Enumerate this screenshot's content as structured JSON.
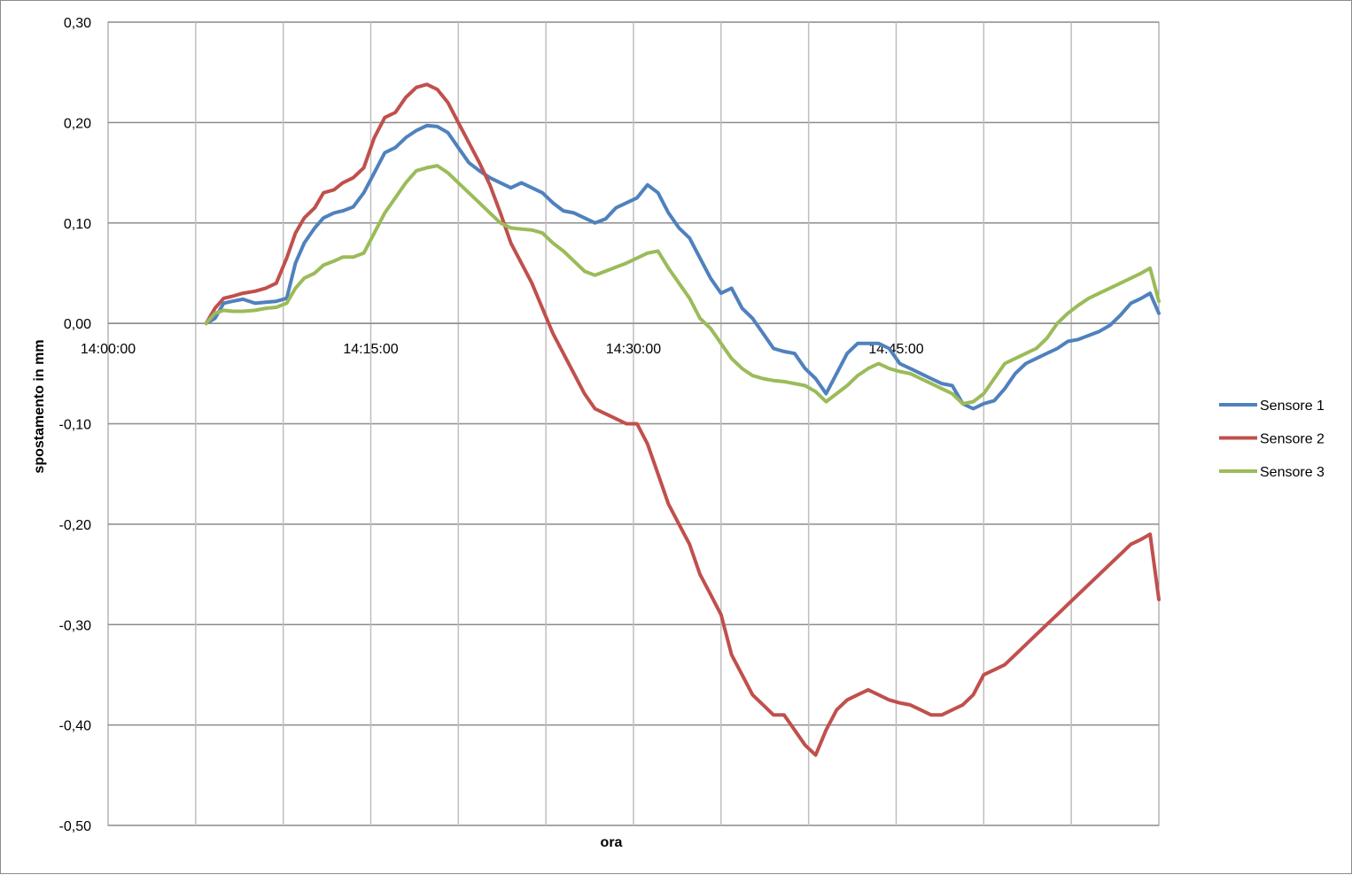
{
  "chart_data": {
    "type": "line",
    "title": "",
    "xlabel": "ora",
    "ylabel": "spostamento in mm",
    "ylim": [
      -0.5,
      0.3
    ],
    "yticks": [
      "0,30",
      "0,20",
      "0,10",
      "0,00",
      "-0,10",
      "-0,20",
      "-0,30",
      "-0,40",
      "-0,50"
    ],
    "ytick_values": [
      0.3,
      0.2,
      0.1,
      0.0,
      -0.1,
      -0.2,
      -0.3,
      -0.4,
      -0.5
    ],
    "x_unit": "minutes after 14:00:00",
    "xlim": [
      0,
      60
    ],
    "xtick_labels": [
      "14:00:00",
      "14:15:00",
      "14:30:00",
      "14:45:00"
    ],
    "xtick_values": [
      0,
      15,
      30,
      45
    ],
    "grid": true,
    "legend_position": "right",
    "series": [
      {
        "name": "Sensore 1",
        "color": "#4f81bd",
        "x": [
          5.6,
          6.1,
          6.6,
          7.1,
          7.7,
          8.4,
          9.0,
          9.6,
          10.2,
          10.7,
          11.2,
          11.8,
          12.3,
          12.9,
          13.4,
          14.0,
          14.6,
          15.2,
          15.8,
          16.4,
          17.0,
          17.6,
          18.2,
          18.8,
          19.4,
          20.0,
          20.6,
          21.2,
          21.8,
          22.4,
          23.0,
          23.6,
          24.2,
          24.8,
          25.4,
          26.0,
          26.6,
          27.2,
          27.8,
          28.4,
          29.0,
          29.6,
          30.2,
          30.8,
          31.4,
          32.0,
          32.6,
          33.2,
          33.8,
          34.4,
          35.0,
          35.6,
          36.2,
          36.8,
          37.4,
          38.0,
          38.6,
          39.2,
          39.8,
          40.4,
          41.0,
          41.6,
          42.2,
          42.8,
          43.4,
          44.0,
          44.6,
          45.2,
          45.8,
          46.4,
          47.0,
          47.6,
          48.2,
          48.8,
          49.4,
          50.0,
          50.6,
          51.2,
          51.8,
          52.4,
          53.0,
          53.6,
          54.2,
          54.8,
          55.4,
          56.0,
          56.6,
          57.2,
          57.8,
          58.4,
          59.0,
          59.5,
          60.0
        ],
        "y": [
          0.0,
          0.005,
          0.02,
          0.022,
          0.024,
          0.02,
          0.021,
          0.022,
          0.025,
          0.06,
          0.08,
          0.095,
          0.105,
          0.11,
          0.112,
          0.116,
          0.13,
          0.15,
          0.17,
          0.175,
          0.185,
          0.192,
          0.197,
          0.196,
          0.19,
          0.175,
          0.16,
          0.152,
          0.145,
          0.14,
          0.135,
          0.14,
          0.135,
          0.13,
          0.12,
          0.112,
          0.11,
          0.105,
          0.1,
          0.104,
          0.115,
          0.12,
          0.125,
          0.138,
          0.13,
          0.11,
          0.095,
          0.085,
          0.065,
          0.045,
          0.03,
          0.035,
          0.015,
          0.005,
          -0.01,
          -0.025,
          -0.028,
          -0.03,
          -0.045,
          -0.055,
          -0.07,
          -0.05,
          -0.03,
          -0.02,
          -0.02,
          -0.02,
          -0.025,
          -0.04,
          -0.045,
          -0.05,
          -0.055,
          -0.06,
          -0.062,
          -0.08,
          -0.085,
          -0.08,
          -0.077,
          -0.065,
          -0.05,
          -0.04,
          -0.035,
          -0.03,
          -0.025,
          -0.018,
          -0.016,
          -0.012,
          -0.008,
          -0.002,
          0.008,
          0.02,
          0.025,
          0.03,
          0.01
        ]
      },
      {
        "name": "Sensore 2",
        "color": "#c0504d",
        "x": [
          5.6,
          6.1,
          6.6,
          7.1,
          7.7,
          8.4,
          9.0,
          9.6,
          10.2,
          10.7,
          11.2,
          11.8,
          12.3,
          12.9,
          13.4,
          14.0,
          14.6,
          15.2,
          15.8,
          16.4,
          17.0,
          17.6,
          18.2,
          18.8,
          19.4,
          20.0,
          20.6,
          21.2,
          21.8,
          22.4,
          23.0,
          23.6,
          24.2,
          24.8,
          25.4,
          26.0,
          26.6,
          27.2,
          27.8,
          28.4,
          29.0,
          29.6,
          30.2,
          30.8,
          31.4,
          32.0,
          32.6,
          33.2,
          33.8,
          34.4,
          35.0,
          35.6,
          36.2,
          36.8,
          37.4,
          38.0,
          38.6,
          39.2,
          39.8,
          40.4,
          41.0,
          41.6,
          42.2,
          42.8,
          43.4,
          44.0,
          44.6,
          45.2,
          45.8,
          46.4,
          47.0,
          47.6,
          48.2,
          48.8,
          49.4,
          50.0,
          50.6,
          51.2,
          51.8,
          52.4,
          53.0,
          53.6,
          54.2,
          54.8,
          55.4,
          56.0,
          56.6,
          57.2,
          57.8,
          58.4,
          59.0,
          59.5,
          60.0
        ],
        "y": [
          0.0,
          0.015,
          0.025,
          0.027,
          0.03,
          0.032,
          0.035,
          0.04,
          0.065,
          0.09,
          0.105,
          0.115,
          0.13,
          0.133,
          0.14,
          0.145,
          0.155,
          0.185,
          0.205,
          0.21,
          0.225,
          0.235,
          0.238,
          0.233,
          0.22,
          0.2,
          0.18,
          0.16,
          0.138,
          0.11,
          0.08,
          0.06,
          0.04,
          0.015,
          -0.01,
          -0.03,
          -0.05,
          -0.07,
          -0.085,
          -0.09,
          -0.095,
          -0.1,
          -0.1,
          -0.12,
          -0.15,
          -0.18,
          -0.2,
          -0.22,
          -0.25,
          -0.27,
          -0.29,
          -0.33,
          -0.35,
          -0.37,
          -0.38,
          -0.39,
          -0.39,
          -0.405,
          -0.42,
          -0.43,
          -0.405,
          -0.385,
          -0.375,
          -0.37,
          -0.365,
          -0.37,
          -0.375,
          -0.378,
          -0.38,
          -0.385,
          -0.39,
          -0.39,
          -0.385,
          -0.38,
          -0.37,
          -0.35,
          -0.345,
          -0.34,
          -0.33,
          -0.32,
          -0.31,
          -0.3,
          -0.29,
          -0.28,
          -0.27,
          -0.26,
          -0.25,
          -0.24,
          -0.23,
          -0.22,
          -0.215,
          -0.21,
          -0.275
        ]
      },
      {
        "name": "Sensore 3",
        "color": "#9bbb59",
        "x": [
          5.6,
          6.1,
          6.6,
          7.1,
          7.7,
          8.4,
          9.0,
          9.6,
          10.2,
          10.7,
          11.2,
          11.8,
          12.3,
          12.9,
          13.4,
          14.0,
          14.6,
          15.2,
          15.8,
          16.4,
          17.0,
          17.6,
          18.2,
          18.8,
          19.4,
          20.0,
          20.6,
          21.2,
          21.8,
          22.4,
          23.0,
          23.6,
          24.2,
          24.8,
          25.4,
          26.0,
          26.6,
          27.2,
          27.8,
          28.4,
          29.0,
          29.6,
          30.2,
          30.8,
          31.4,
          32.0,
          32.6,
          33.2,
          33.8,
          34.4,
          35.0,
          35.6,
          36.2,
          36.8,
          37.4,
          38.0,
          38.6,
          39.2,
          39.8,
          40.4,
          41.0,
          41.6,
          42.2,
          42.8,
          43.4,
          44.0,
          44.6,
          45.2,
          45.8,
          46.4,
          47.0,
          47.6,
          48.2,
          48.8,
          49.4,
          50.0,
          50.6,
          51.2,
          51.8,
          52.4,
          53.0,
          53.6,
          54.2,
          54.8,
          55.4,
          56.0,
          56.6,
          57.2,
          57.8,
          58.4,
          59.0,
          59.5,
          60.0
        ],
        "y": [
          0.0,
          0.01,
          0.013,
          0.012,
          0.012,
          0.013,
          0.015,
          0.016,
          0.02,
          0.035,
          0.045,
          0.05,
          0.058,
          0.062,
          0.066,
          0.066,
          0.07,
          0.09,
          0.11,
          0.125,
          0.14,
          0.152,
          0.155,
          0.157,
          0.15,
          0.14,
          0.13,
          0.12,
          0.11,
          0.1,
          0.095,
          0.094,
          0.093,
          0.09,
          0.08,
          0.072,
          0.062,
          0.052,
          0.048,
          0.052,
          0.056,
          0.06,
          0.065,
          0.07,
          0.072,
          0.055,
          0.04,
          0.025,
          0.005,
          -0.005,
          -0.02,
          -0.035,
          -0.045,
          -0.052,
          -0.055,
          -0.057,
          -0.058,
          -0.06,
          -0.062,
          -0.068,
          -0.078,
          -0.07,
          -0.062,
          -0.052,
          -0.045,
          -0.04,
          -0.045,
          -0.048,
          -0.05,
          -0.055,
          -0.06,
          -0.065,
          -0.07,
          -0.08,
          -0.078,
          -0.07,
          -0.055,
          -0.04,
          -0.035,
          -0.03,
          -0.025,
          -0.015,
          0.0,
          0.01,
          0.018,
          0.025,
          0.03,
          0.035,
          0.04,
          0.045,
          0.05,
          0.055,
          0.022
        ]
      }
    ]
  }
}
